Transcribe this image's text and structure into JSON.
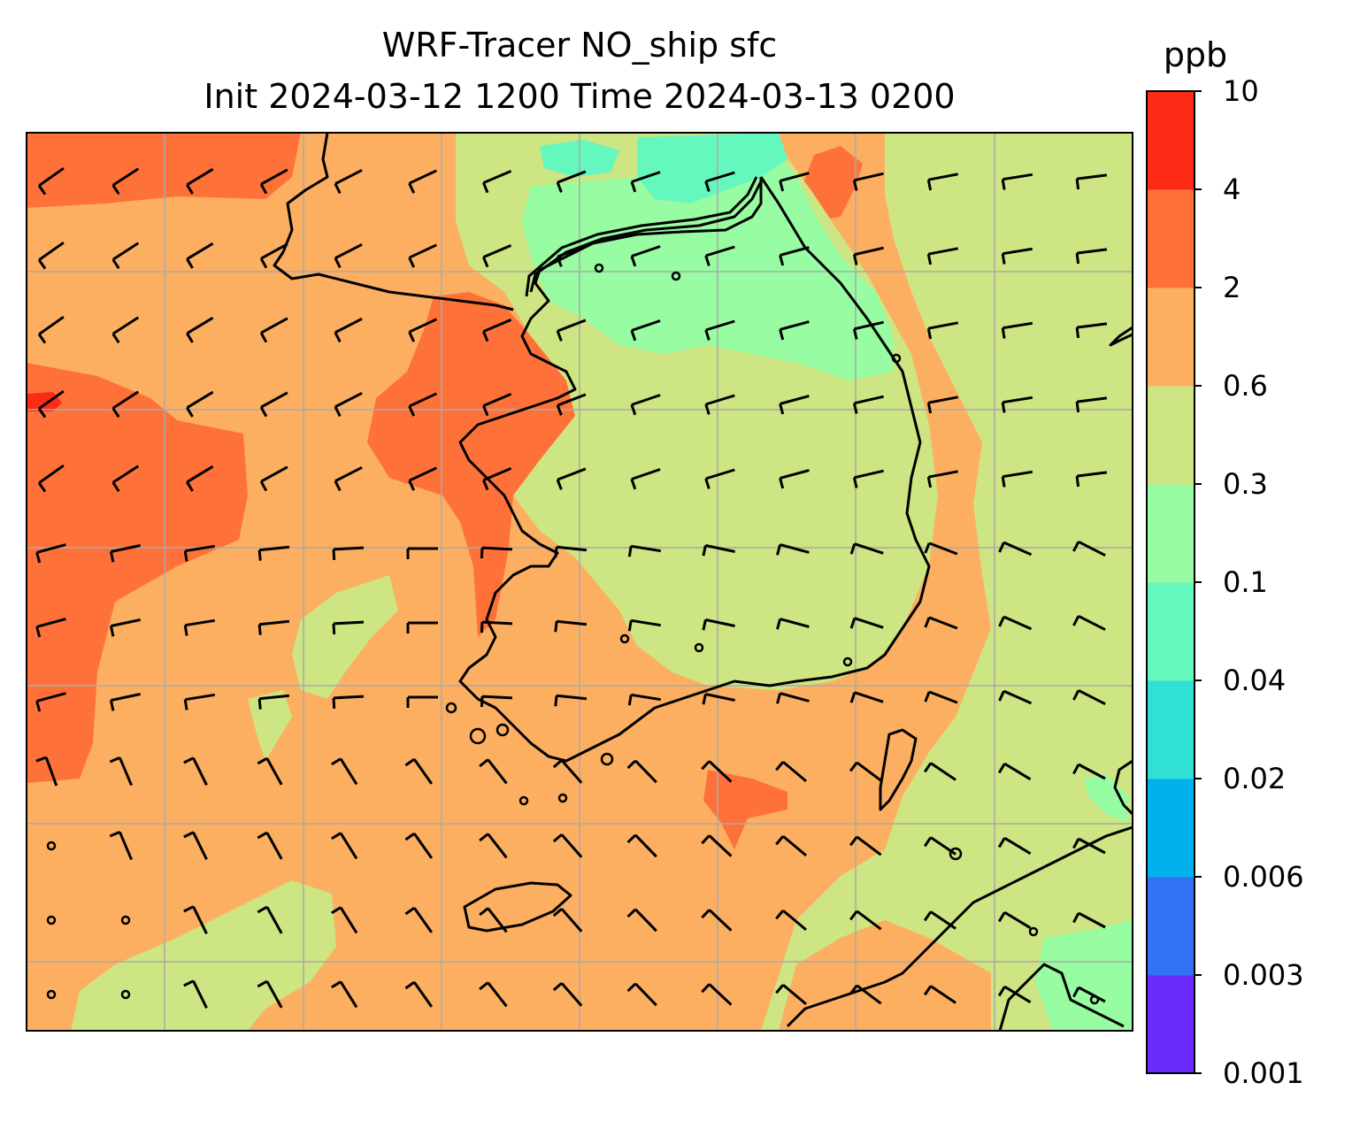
{
  "title": "WRF-Tracer NO_ship sfc",
  "subtitle": "Init 2024-03-12 1200 Time 2024-03-13 0200",
  "colorbar": {
    "unit": "ppb",
    "levels": [
      "0.001",
      "0.003",
      "0.006",
      "0.02",
      "0.04",
      "0.1",
      "0.3",
      "0.6",
      "2",
      "4",
      "10"
    ],
    "colors": [
      "#6a2bfb",
      "#3373f3",
      "#00b1ee",
      "#31e0d5",
      "#64f8bf",
      "#98fca2",
      "#cde583",
      "#fcaf61",
      "#fe7239",
      "#fd2b16"
    ]
  },
  "map": {
    "field": "NO_ship",
    "level": "sfc",
    "gridlines": true,
    "wind_barbs": true,
    "coastlines": true
  }
}
